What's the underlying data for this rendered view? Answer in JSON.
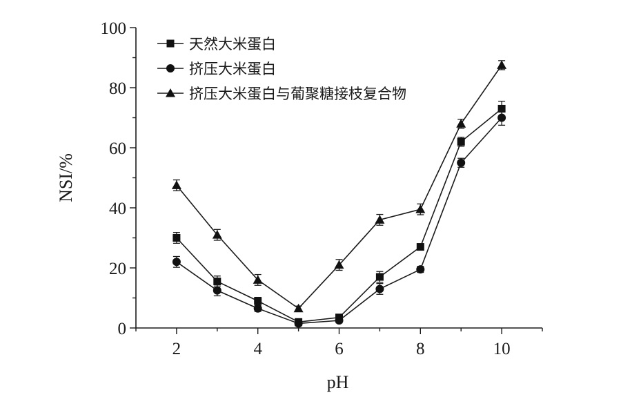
{
  "chart_data": {
    "type": "line",
    "xlabel": "pH",
    "ylabel": "NSI/%",
    "xlim": [
      1,
      11
    ],
    "ylim": [
      0,
      100
    ],
    "xticks": [
      2,
      4,
      6,
      8,
      10
    ],
    "yticks": [
      0,
      20,
      40,
      60,
      80,
      100
    ],
    "grid": false,
    "legend_position": "top-left",
    "x": [
      2,
      3,
      4,
      5,
      6,
      7,
      8,
      9,
      10
    ],
    "series": [
      {
        "name": "天然大米蛋白",
        "marker": "square",
        "values": [
          30,
          15.5,
          9,
          2,
          3.5,
          17,
          27,
          62,
          73
        ],
        "errors": [
          1.8,
          1.8,
          1.2,
          0.8,
          0.8,
          1.8,
          1.0,
          1.5,
          2.5
        ]
      },
      {
        "name": "挤压大米蛋白",
        "marker": "circle",
        "values": [
          22,
          12.5,
          6.5,
          1.5,
          2.5,
          13,
          19.5,
          55,
          70
        ],
        "errors": [
          1.8,
          1.8,
          1.0,
          0.8,
          0.8,
          1.8,
          1.0,
          1.5,
          2.5
        ]
      },
      {
        "name": "挤压大米蛋白与葡聚糖接枝复合物",
        "marker": "triangle",
        "values": [
          47.5,
          31,
          16,
          6.5,
          21,
          36,
          39.5,
          68,
          87.5
        ],
        "errors": [
          1.8,
          1.8,
          1.8,
          0.8,
          1.8,
          1.8,
          1.8,
          1.5,
          1.5
        ]
      }
    ]
  }
}
